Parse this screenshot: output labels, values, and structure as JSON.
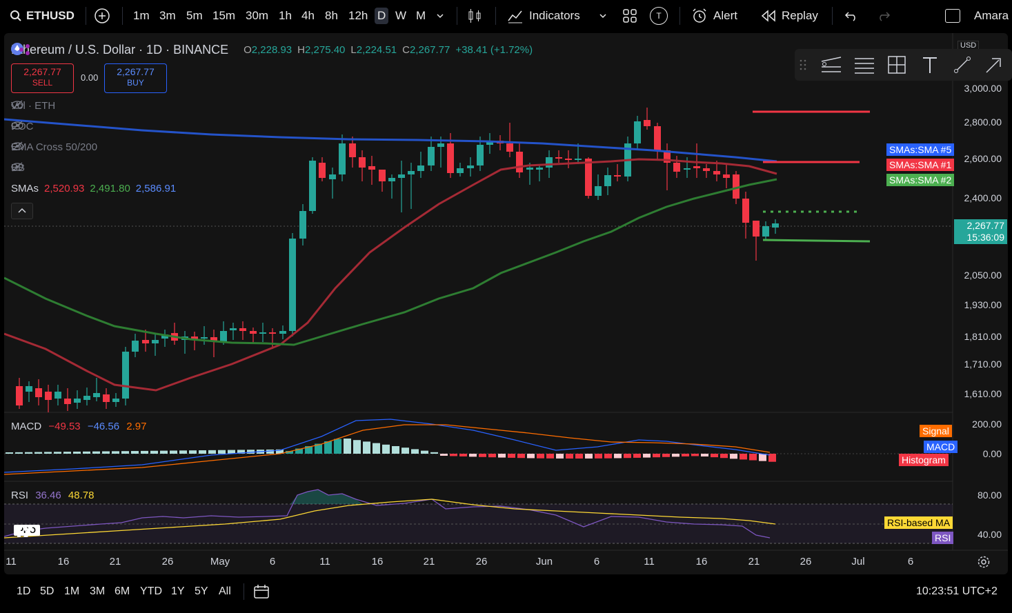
{
  "topbar": {
    "symbol": "ETHUSD",
    "timeframes": [
      "1m",
      "3m",
      "5m",
      "15m",
      "30m",
      "1h",
      "4h",
      "8h",
      "12h",
      "D",
      "W",
      "M"
    ],
    "active_timeframe": "D",
    "indicators": "Indicators",
    "alert": "Alert",
    "replay": "Replay",
    "user": "Amara",
    "t_badge": "T"
  },
  "legend": {
    "title": "Ethereum / U.S. Dollar · 1D · BINANCE",
    "o_label": "O",
    "o": "2,228.93",
    "h_label": "H",
    "h": "2,275.40",
    "l_label": "L",
    "l": "2,224.51",
    "c_label": "C",
    "c": "2,267.77",
    "change": "+38.41 (+1.72%)"
  },
  "trade": {
    "sell_price": "2,267.77",
    "sell_label": "SELL",
    "spread": "0.00",
    "buy_price": "2,267.77",
    "buy_label": "BUY"
  },
  "overlays": {
    "vol": "Vol · ETH",
    "poc": "POC",
    "ema": "EMA Cross 50/200",
    "bb": "BB",
    "smas_label": "SMAs",
    "sma1": "2,520.93",
    "sma2": "2,491.80",
    "sma5": "2,586.91"
  },
  "price_axis": {
    "top_label": "USD",
    "ticks": [
      "3,000.00",
      "2,800.00",
      "2,600.00",
      "2,400.00",
      "2,050.00",
      "1,930.00",
      "1,810.00",
      "1,710.00",
      "1,610.00"
    ],
    "current_price": "2,267.77",
    "countdown": "15:36:09",
    "sma5_tag": "SMAs:SMA #5",
    "sma1_tag": "SMAs:SMA #1",
    "sma2_tag": "SMAs:SMA #2"
  },
  "macd": {
    "label": "MACD",
    "v1": "−49.53",
    "v2": "−46.56",
    "v3": "2.97",
    "ticks": [
      "200.00",
      "0.00"
    ],
    "signal_tag": "Signal",
    "macd_tag": "MACD",
    "hist_tag": "Histogram"
  },
  "rsi": {
    "label": "RSI",
    "v1": "36.46",
    "v2": "48.78",
    "ticks": [
      "80.00",
      "40.00"
    ],
    "ma_tag": "RSI-based MA",
    "rsi_tag": "RSI"
  },
  "time_axis": [
    "11",
    "16",
    "21",
    "26",
    "May",
    "6",
    "11",
    "16",
    "21",
    "26",
    "Jun",
    "6",
    "11",
    "16",
    "21",
    "26",
    "Jul",
    "6"
  ],
  "bottombar": {
    "ranges": [
      "1D",
      "5D",
      "1M",
      "3M",
      "6M",
      "YTD",
      "1Y",
      "5Y",
      "All"
    ],
    "clock": "10:23:51 UTC+2"
  },
  "logo": "PRO",
  "colors": {
    "up": "#26a69a",
    "down": "#f23645",
    "sma5": "#2962ff",
    "sma1": "#b22833",
    "sma2": "#388e3c",
    "signal": "#ff6d00",
    "macd": "#2962ff",
    "rsi": "#7e57c2",
    "rsi_ma": "#fdd835"
  },
  "chart_data": {
    "type": "candlestick",
    "symbol": "ETHUSD",
    "interval": "1D",
    "last": {
      "open": 2228.93,
      "high": 2275.4,
      "low": 2224.51,
      "close": 2267.77
    },
    "sma": {
      "sma1": 2520.93,
      "sma2": 2491.8,
      "sma5": 2586.91
    },
    "macd": {
      "macd": -49.53,
      "signal": -46.56,
      "histogram": 2.97
    },
    "rsi": {
      "rsi": 36.46,
      "ma": 48.78
    }
  }
}
